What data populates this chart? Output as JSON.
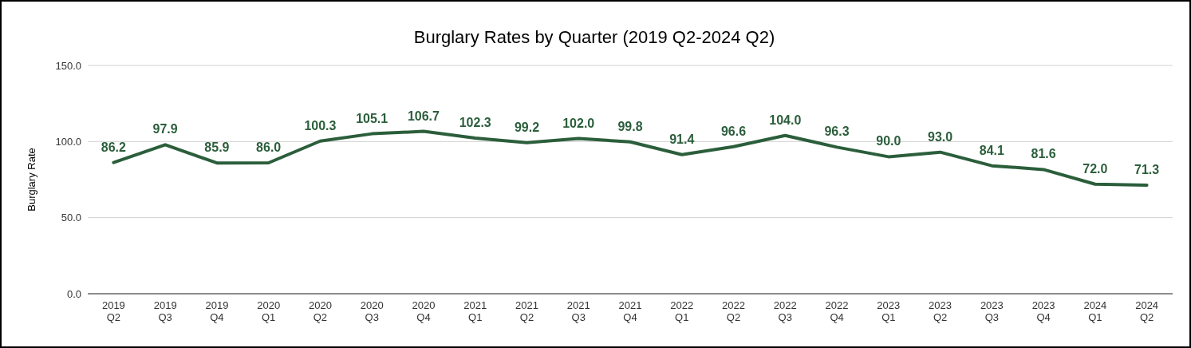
{
  "chart_data": {
    "type": "line",
    "title": "Burglary Rates by Quarter (2019 Q2-2024 Q2)",
    "ylabel": "Burglary Rate",
    "categories": [
      "2019 Q2",
      "2019 Q3",
      "2019 Q4",
      "2020 Q1",
      "2020 Q2",
      "2020 Q3",
      "2020 Q4",
      "2021 Q1",
      "2021 Q2",
      "2021 Q3",
      "2021 Q4",
      "2022 Q1",
      "2022 Q2",
      "2022 Q3",
      "2022 Q4",
      "2023 Q1",
      "2023 Q2",
      "2023 Q3",
      "2023 Q4",
      "2024 Q1",
      "2024 Q2"
    ],
    "series": [
      {
        "color": "#2b5e3b",
        "values": [
          86.2,
          97.9,
          85.9,
          86.0,
          100.3,
          105.1,
          106.7,
          102.3,
          99.2,
          102.0,
          99.8,
          91.4,
          96.6,
          104.0,
          96.3,
          90.0,
          93.0,
          84.1,
          81.6,
          72.0,
          71.3
        ],
        "value_labels": [
          "86.2",
          "97.9",
          "85.9",
          "86.0",
          "100.3",
          "105.1",
          "106.7",
          "102.3",
          "99.2",
          "102.0",
          "99.8",
          "91.4",
          "96.6",
          "104.0",
          "96.3",
          "90.0",
          "93.0",
          "84.1",
          "81.6",
          "72.0",
          "71.3"
        ]
      }
    ],
    "ylim": [
      0,
      150
    ],
    "yticks": [
      {
        "value": 0,
        "label": "0.0"
      },
      {
        "value": 50,
        "label": "50.0"
      },
      {
        "value": 100,
        "label": "100.0"
      },
      {
        "value": 150,
        "label": "150.0"
      }
    ],
    "grid": "y",
    "marker": "none",
    "line_style": "solid"
  }
}
